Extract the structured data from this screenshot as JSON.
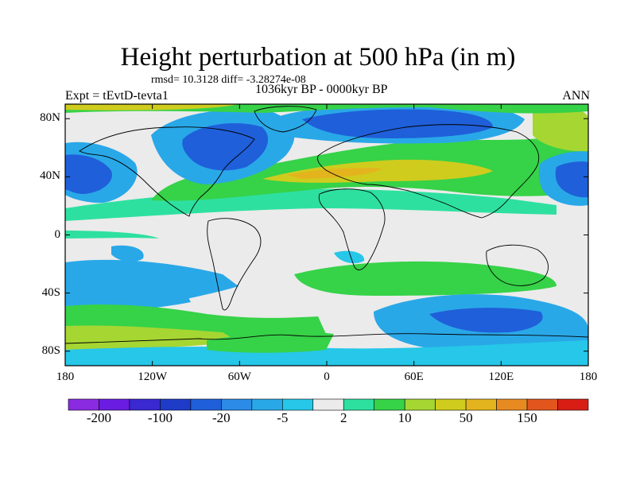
{
  "title": "Height perturbation at 500 hPa (in m)",
  "stats_line": "rmsd= 10.3128 diff= -3.28274e-08",
  "experiment_label": "Expt = tEvtD-tevta1",
  "period_label": "1036kyr BP - 0000kyr BP",
  "season_label": "ANN",
  "map": {
    "lon_range": [
      -180,
      180
    ],
    "lat_range": [
      -90,
      90
    ],
    "lat_ticks": [
      {
        "lat": 80,
        "label": "80N"
      },
      {
        "lat": 40,
        "label": "40N"
      },
      {
        "lat": 0,
        "label": "0"
      },
      {
        "lat": -40,
        "label": "40S"
      },
      {
        "lat": -80,
        "label": "80S"
      }
    ],
    "lon_ticks": [
      {
        "lon": -180,
        "label": "180"
      },
      {
        "lon": -120,
        "label": "120W"
      },
      {
        "lon": -60,
        "label": "60W"
      },
      {
        "lon": 0,
        "label": "0"
      },
      {
        "lon": 60,
        "label": "60E"
      },
      {
        "lon": 120,
        "label": "120E"
      },
      {
        "lon": 180,
        "label": "180"
      }
    ]
  },
  "colorbar": {
    "colors": [
      "#8a2be2",
      "#6a1de0",
      "#3a28d0",
      "#1e3cc8",
      "#1f5fd9",
      "#2b8be6",
      "#29a8e8",
      "#26c7e8",
      "#ebebeb",
      "#2ee0a0",
      "#36d248",
      "#a6d632",
      "#cfcc1e",
      "#e4b41e",
      "#e88a22",
      "#e2561e",
      "#d81e14"
    ],
    "labels": [
      {
        "value": "-200",
        "boundary": 1
      },
      {
        "value": "-100",
        "boundary": 3
      },
      {
        "value": "-20",
        "boundary": 5
      },
      {
        "value": "-5",
        "boundary": 7
      },
      {
        "value": "2",
        "boundary": 9
      },
      {
        "value": "10",
        "boundary": 11
      },
      {
        "value": "50",
        "boundary": 13
      },
      {
        "value": "150",
        "boundary": 15
      }
    ]
  }
}
